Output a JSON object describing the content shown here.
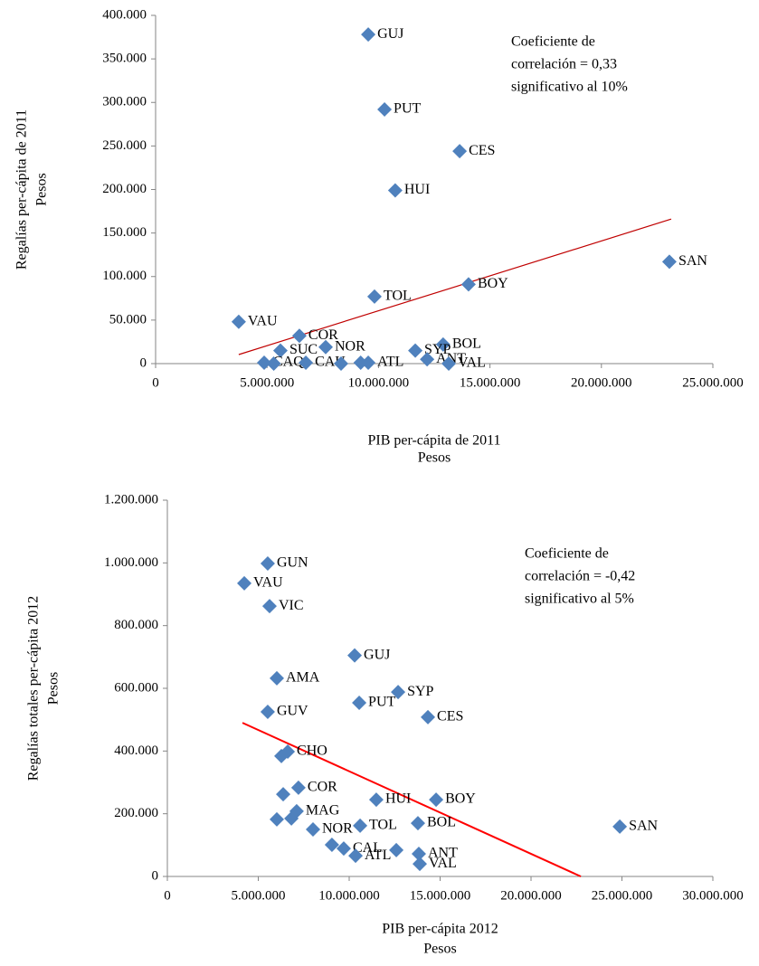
{
  "chart_data": [
    {
      "type": "scatter",
      "color": "#4f81bd",
      "x_label": [
        "PIB per-cápita de 2011",
        "Pesos"
      ],
      "y_label": [
        "Regalías per-cápita de 2011",
        "Pesos"
      ],
      "annotation": [
        "Coeficiente de",
        "correlación = 0,33",
        "significativo al 10%"
      ],
      "labels": [
        "GUJ",
        "PUT",
        "CES",
        "HUI",
        "SAN",
        "BOY",
        "TOL",
        "VAU",
        "COR",
        "SUC",
        "NOR",
        "BOL",
        "SYP",
        "ANT",
        "VAL",
        "ATL",
        null,
        "CAQ",
        "CAU",
        null,
        null
      ],
      "x": [
        9540000,
        10270000,
        13640000,
        10750000,
        23050000,
        14040000,
        9820000,
        3730000,
        6450000,
        5600000,
        7630000,
        12900000,
        11650000,
        12180000,
        13150000,
        9540000,
        9200000,
        4870000,
        6740000,
        5300000,
        8320000
      ],
      "values": [
        378000,
        292000,
        244000,
        199000,
        117000,
        91000,
        77000,
        48000,
        32000,
        15000,
        19000,
        22000,
        15000,
        5000,
        0,
        1000,
        1000,
        1000,
        1000,
        0,
        0
      ],
      "trendline": {
        "color": "#c00000",
        "x": [
          3730000,
          23130000
        ],
        "values": [
          10400,
          166000
        ]
      },
      "xlim": [
        0,
        25000000
      ],
      "xticks": [
        0,
        {
          "value": 5000000,
          "label": "5.000.000"
        },
        {
          "value": 10000000,
          "label": "10.000.000"
        },
        {
          "value": 15000000,
          "label": "15.000.000"
        },
        {
          "value": 20000000,
          "label": "20.000.000"
        },
        {
          "value": 25000000,
          "label": "25.000.000"
        }
      ],
      "ylim": [
        0,
        400000
      ],
      "yticks": [
        0,
        {
          "value": 50000,
          "label": "50.000"
        },
        {
          "value": 100000,
          "label": "100.000"
        },
        {
          "value": 150000,
          "label": "150.000"
        },
        {
          "value": 200000,
          "label": "200.000"
        },
        {
          "value": 250000,
          "label": "250.000"
        },
        {
          "value": 300000,
          "label": "300.000"
        },
        {
          "value": 350000,
          "label": "350.000"
        },
        {
          "value": 400000,
          "label": "400.000"
        }
      ]
    },
    {
      "type": "scatter",
      "color": "#4f81bd",
      "x_label": [
        "PIB per-cápita 2012",
        "Pesos"
      ],
      "y_label": [
        "Regalías totales per-cápita 2012",
        "Pesos"
      ],
      "annotation": [
        "Coeficiente de",
        "correlación = -0,42",
        "significativo al 5%"
      ],
      "labels": [
        "GUN",
        "VAU",
        "VIC",
        "GUJ",
        "AMA",
        "SYP",
        "PUT",
        "CES",
        "GUV",
        "CHO",
        null,
        "COR",
        null,
        "HUI",
        "BOY",
        "MAG",
        null,
        null,
        "BOL",
        "SAN",
        "TOL",
        "NOR",
        "CAL",
        null,
        "ATL",
        null,
        "ANT",
        "VAL"
      ],
      "x": [
        5520000,
        4230000,
        5620000,
        10300000,
        6020000,
        12690000,
        10550000,
        14330000,
        5520000,
        6620000,
        6270000,
        7210000,
        6370000,
        11490000,
        14780000,
        7110000,
        6020000,
        6820000,
        13780000,
        24880000,
        10600000,
        8010000,
        9700000,
        9050000,
        10350000,
        12590000,
        13830000,
        13880000
      ],
      "values": [
        998000,
        935000,
        862000,
        705000,
        632000,
        588000,
        554000,
        508000,
        525000,
        398000,
        384000,
        283000,
        262000,
        245000,
        245000,
        208000,
        182000,
        185000,
        170000,
        159000,
        162000,
        150000,
        89000,
        101000,
        66000,
        84000,
        72000,
        40000
      ],
      "trendline": {
        "color": "#ff0000",
        "x": [
          4130000,
          22740000
        ],
        "values": [
          490000,
          0
        ]
      },
      "xlim": [
        0,
        30000000
      ],
      "xticks": [
        0,
        {
          "value": 5000000,
          "label": "5.000.000"
        },
        {
          "value": 10000000,
          "label": "10.000.000"
        },
        {
          "value": 15000000,
          "label": "15.000.000"
        },
        {
          "value": 20000000,
          "label": "20.000.000"
        },
        {
          "value": 25000000,
          "label": "25.000.000"
        },
        {
          "value": 30000000,
          "label": "30.000.000"
        }
      ],
      "ylim": [
        0,
        1200000
      ],
      "yticks": [
        0,
        {
          "value": 200000,
          "label": "200.000"
        },
        {
          "value": 400000,
          "label": "400.000"
        },
        {
          "value": 600000,
          "label": "600.000"
        },
        {
          "value": 800000,
          "label": "800.000"
        },
        {
          "value": 1000000,
          "label": "1.000.000"
        },
        {
          "value": 1200000,
          "label": "1.200.000"
        }
      ]
    }
  ]
}
